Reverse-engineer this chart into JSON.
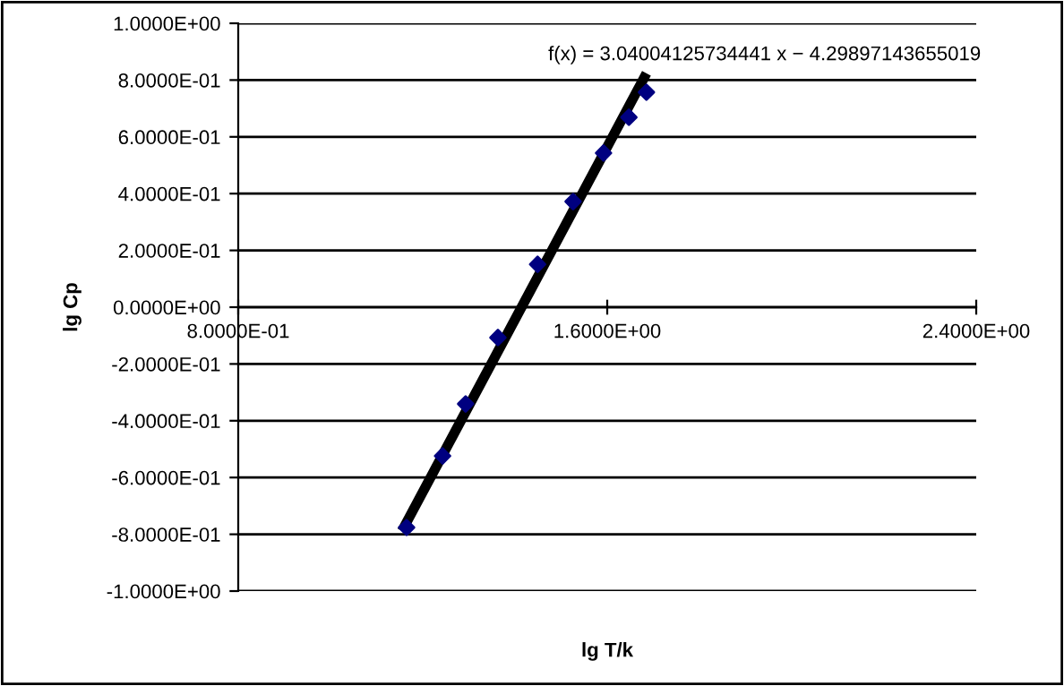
{
  "chart_data": {
    "type": "scatter",
    "xlabel": "lg T/k",
    "ylabel": "lg Cp",
    "xlim": [
      0.8,
      2.4
    ],
    "ylim": [
      -1.0,
      1.0
    ],
    "xticks": [
      {
        "value": 0.8,
        "label": "8.0000E-01"
      },
      {
        "value": 1.6,
        "label": "1.6000E+00"
      },
      {
        "value": 2.4,
        "label": "2.4000E+00"
      }
    ],
    "yticks": [
      {
        "value": -1.0,
        "label": "-1.0000E+00"
      },
      {
        "value": -0.8,
        "label": "-8.0000E-01"
      },
      {
        "value": -0.6,
        "label": "-6.0000E-01"
      },
      {
        "value": -0.4,
        "label": "-4.0000E-01"
      },
      {
        "value": -0.2,
        "label": "-2.0000E-01"
      },
      {
        "value": 0.0,
        "label": "0.0000E+00"
      },
      {
        "value": 0.2,
        "label": "2.0000E-01"
      },
      {
        "value": 0.4,
        "label": "4.0000E-01"
      },
      {
        "value": 0.6,
        "label": "6.0000E-01"
      },
      {
        "value": 0.8,
        "label": "8.0000E-01"
      },
      {
        "value": 1.0,
        "label": "1.0000E+00"
      }
    ],
    "grid": "y",
    "marker": "diamond",
    "legend": false,
    "series": [
      {
        "color": "#000080",
        "x": [
          1.165,
          1.243,
          1.293,
          1.363,
          1.449,
          1.526,
          1.592,
          1.647,
          1.685
        ],
        "values": [
          -0.776,
          -0.524,
          -0.341,
          -0.107,
          0.151,
          0.372,
          0.543,
          0.669,
          0.757
        ]
      },
      {
        "type": "line",
        "marker": "none",
        "color": "#000000",
        "x": [
          1.16,
          1.68
        ],
        "values": [
          -0.773,
          0.808
        ]
      }
    ],
    "annotations": [
      "f(x) = 3.04004125734441 x − 4.29897143655019"
    ]
  }
}
